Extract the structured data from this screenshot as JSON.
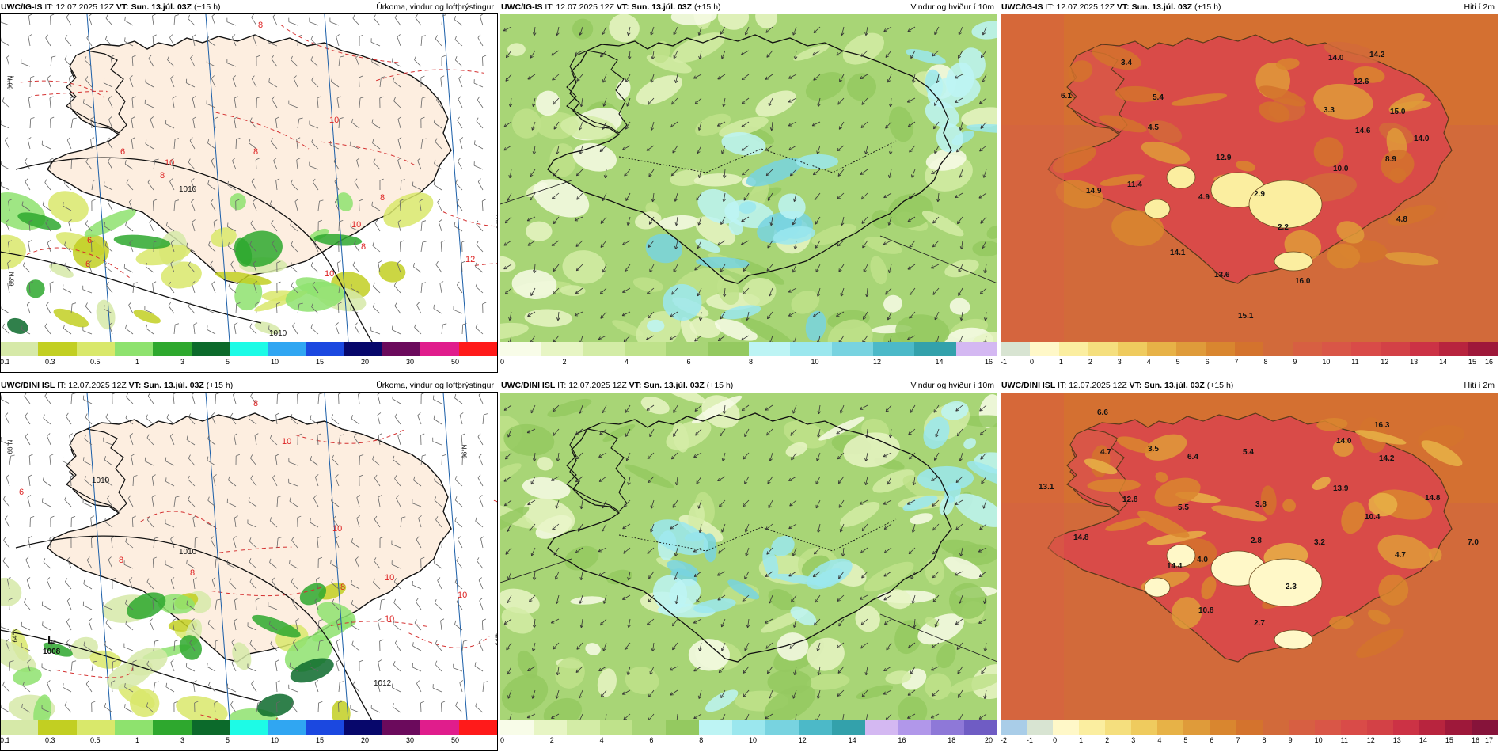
{
  "panels": [
    {
      "id": "p1",
      "model": "UWC/IG-IS",
      "it_label": "IT:",
      "it_value": "12.07.2025 12Z",
      "vt_label": "VT:",
      "vt_value": "Sun. 13.júl. 03Z",
      "lead": "(+15 h)",
      "title": "Úrkoma, vindur og loftþrýstingur",
      "type": "precip",
      "scale_colors": [
        "#d6e9a8",
        "#c2cf22",
        "#d9e86b",
        "#8ee26e",
        "#2ea82e",
        "#0c6a2b",
        "#1dfbe6",
        "#30a6f2",
        "#1b48e0",
        "#07076b",
        "#6b0a5c",
        "#e01d8c",
        "#ff1a1a"
      ],
      "scale_labels": [
        "0.1",
        "0.3",
        "0.5",
        "1",
        "3",
        "5",
        "10",
        "15",
        "20",
        "30",
        "50"
      ],
      "isobars": [
        "1010",
        "1010"
      ],
      "isotherms": [
        "8",
        "6",
        "10",
        "8",
        "8",
        "10",
        "6",
        "8",
        "10",
        "12",
        "8",
        "10",
        "6"
      ],
      "lat_labels": [
        "66°N",
        "64°N",
        "66°N"
      ]
    },
    {
      "id": "p2",
      "model": "UWC/IG-IS",
      "it_label": "IT:",
      "it_value": "12.07.2025 12Z",
      "vt_label": "VT:",
      "vt_value": "Sun. 13.júl. 03Z",
      "lead": "(+15 h)",
      "title": "Vindur og hviður í 10m",
      "type": "wind",
      "scale_colors": [
        "#f8fce8",
        "#e7f5c4",
        "#d3eca6",
        "#bfe28b",
        "#a8d576",
        "#94c960",
        "#bdf4f4",
        "#9be7ee",
        "#78d3e0",
        "#4cb9c8",
        "#33a1ab",
        "#d4b8f2"
      ],
      "scale_labels": [
        "0",
        "2",
        "4",
        "6",
        "8",
        "10",
        "12",
        "14",
        "16"
      ]
    },
    {
      "id": "p3",
      "model": "UWC/IG-IS",
      "it_label": "IT:",
      "it_value": "12.07.2025 12Z",
      "vt_label": "VT:",
      "vt_value": "Sun. 13.júl. 03Z",
      "lead": "(+15 h)",
      "title": "Hiti í 2m",
      "type": "temp",
      "scale_colors": [
        "#d8e4d2",
        "#fff8c8",
        "#fbeea0",
        "#f5df7e",
        "#efcb5e",
        "#e7b247",
        "#df9b3a",
        "#d9862f",
        "#d4732d",
        "#d26a3a",
        "#d75f42",
        "#d95647",
        "#d94b48",
        "#d34146",
        "#cc3245",
        "#b8243e",
        "#9e183a"
      ],
      "scale_labels": [
        "-1",
        "0",
        "1",
        "2",
        "3",
        "4",
        "5",
        "6",
        "7",
        "8",
        "9",
        "10",
        "11",
        "12",
        "13",
        "14",
        "15",
        "16"
      ],
      "point_values": [
        "3.4",
        "14.0",
        "14.2",
        "6.1",
        "5.4",
        "12.6",
        "3.3",
        "15.0",
        "4.5",
        "14.6",
        "14.0",
        "12.9",
        "8.9",
        "10.0",
        "14.9",
        "11.4",
        "4.9",
        "2.9",
        "4.8",
        "2.2",
        "14.1",
        "13.6",
        "16.0",
        "15.1"
      ]
    },
    {
      "id": "p4",
      "model": "UWC/DINI ISL",
      "it_label": "IT:",
      "it_value": "12.07.2025 12Z",
      "vt_label": "VT:",
      "vt_value": "Sun. 13.júl. 03Z",
      "lead": "(+15 h)",
      "title": "Úrkoma, vindur og loftþrýstingur",
      "type": "precip",
      "scale_colors": [
        "#d6e9a8",
        "#c2cf22",
        "#d9e86b",
        "#8ee26e",
        "#2ea82e",
        "#0c6a2b",
        "#1dfbe6",
        "#30a6f2",
        "#1b48e0",
        "#07076b",
        "#6b0a5c",
        "#e01d8c",
        "#ff1a1a"
      ],
      "scale_labels": [
        "0.1",
        "0.3",
        "0.5",
        "1",
        "3",
        "5",
        "10",
        "15",
        "20",
        "30",
        "50"
      ],
      "isobars": [
        "1010",
        "1010",
        "1012"
      ],
      "isotherms": [
        "8",
        "10",
        "6",
        "10",
        "8",
        "10",
        "8",
        "10",
        "8",
        "10"
      ],
      "lat_labels": [
        "66°N",
        "66°N",
        "64°N",
        "64°N"
      ],
      "low_letter": "L",
      "low_value": "1008"
    },
    {
      "id": "p5",
      "model": "UWC/DINI ISL",
      "it_label": "IT:",
      "it_value": "12.07.2025 12Z",
      "vt_label": "VT:",
      "vt_value": "Sun. 13.júl. 03Z",
      "lead": "(+15 h)",
      "title": "Vindur og hviður í 10m",
      "type": "wind",
      "scale_colors": [
        "#f8fce8",
        "#e7f5c4",
        "#d3eca6",
        "#bfe28b",
        "#a8d576",
        "#94c960",
        "#bdf4f4",
        "#9be7ee",
        "#78d3e0",
        "#4cb9c8",
        "#33a1ab",
        "#d4b8f2",
        "#b197ea",
        "#8e78d8",
        "#6f5cc4"
      ],
      "scale_labels": [
        "0",
        "2",
        "4",
        "6",
        "8",
        "10",
        "12",
        "14",
        "16",
        "18",
        "20"
      ]
    },
    {
      "id": "p6",
      "model": "UWC/DINI ISL",
      "it_label": "IT:",
      "it_value": "12.07.2025 12Z",
      "vt_label": "VT:",
      "vt_value": "Sun. 13.júl. 03Z",
      "lead": "(+15 h)",
      "title": "Hiti í 2m",
      "type": "temp",
      "scale_colors": [
        "#a9cde8",
        "#d8e4d2",
        "#fff8c8",
        "#fbeea0",
        "#f5df7e",
        "#efcb5e",
        "#e7b247",
        "#df9b3a",
        "#d9862f",
        "#d4732d",
        "#d26a3a",
        "#d75f42",
        "#d95647",
        "#d94b48",
        "#d34146",
        "#cc3245",
        "#b8243e",
        "#9e183a",
        "#86133a"
      ],
      "scale_labels": [
        "-2",
        "-1",
        "0",
        "1",
        "2",
        "3",
        "4",
        "5",
        "6",
        "7",
        "8",
        "9",
        "10",
        "11",
        "12",
        "13",
        "14",
        "15",
        "16",
        "17"
      ],
      "point_values": [
        "6.6",
        "16.3",
        "14.0",
        "4.7",
        "3.5",
        "6.4",
        "5.4",
        "14.2",
        "13.1",
        "12.8",
        "14.8",
        "5.5",
        "3.8",
        "13.9",
        "10.4",
        "7.0",
        "14.8",
        "2.8",
        "3.2",
        "4.0",
        "14.4",
        "4.7",
        "2.3",
        "10.8",
        "2.7"
      ]
    }
  ]
}
